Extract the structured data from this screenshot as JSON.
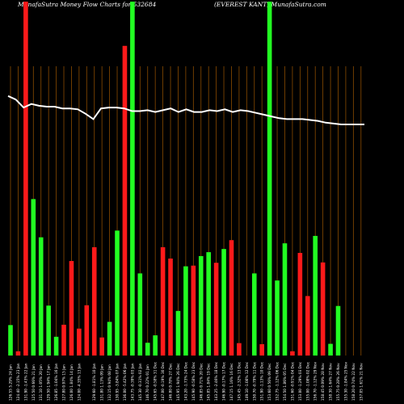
{
  "chart_data": {
    "type": "bar",
    "title_left": "MunafaSutra  Money Flow  Charts for 532684",
    "title_right": "(EVEREST KANT) MunafaSutra.com",
    "categories": [
      "Fri 24 Jan 2025",
      "Thu 23 Jan 2025",
      "Wed 22 Jan 2025",
      "Tue 21 Jan 2025",
      "Mon 20 Jan 2025",
      "Fri 17 Jan 2025",
      "Thu 16 Jan 2025",
      "Wed 15 Jan 2025",
      "Tue 14 Jan 2025",
      "Mon 13 Jan 2025",
      "Fri 10 Jan 2025",
      "Thu 09 Jan 2025",
      "Wed 08 Jan 2025",
      "Tue 07 Jan 2025",
      "Mon 06 Jan 2025",
      "Fri 03 Jan 2025",
      "Thu 02 Jan 2025",
      "Wed 01 Jan 2025",
      "Tue 31 Dec 2024",
      "Mon 30 Dec 2024",
      "Fri 27 Dec 2024",
      "Thu 26 Dec 2024",
      "Tue 24 Dec 2024",
      "Mon 23 Dec 2024",
      "Fri 20 Dec 2024",
      "Thu 19 Dec 2024",
      "Wed 18 Dec 2024",
      "Tue 17 Dec 2024",
      "Mon 16 Dec 2024",
      "Fri 13 Dec 2024",
      "Thu 12 Dec 2024",
      "Wed 11 Dec 2024",
      "Tue 10 Dec 2024",
      "Mon 09 Dec 2024",
      "Fri 06 Dec 2024",
      "Thu 05 Dec 2024",
      "Wed 04 Dec 2024",
      "Tue 03 Dec 2024",
      "Mon 02 Dec 2024",
      "Fri 29 Nov 2024",
      "Thu 28 Nov 2024",
      "Wed 27 Nov 2024",
      "Tue 26 Nov 2024",
      "Mon 25 Nov 2024",
      "Fri 22 Nov 2024",
      "Thu 21 Nov 2024",
      "Wed 20 Nov 2024"
    ],
    "tick_labels": [
      "126.55 5.29% 24 Jan",
      "124.40 -2.15% 23 Jan",
      "131.90 -1.43% 22 Jan",
      "125.50 0.66% 21 Jan",
      "131.10 1.05% 20 Jan",
      "129.50 1.94% 17 Jan",
      "126.85 -1.04% 16 Jan",
      "127.80 0.97% 15 Jan",
      "126.00 1.84% 14 Jan",
      "124.00 -4.35% 13 Jan",
      "",
      "129.60 -1.81% 10 Jan",
      "131.80 1.13% 09 Jan",
      "132.15 0.94% 08 Jan",
      "130.95 -3.84% 07 Jan",
      "136.00 -5.42% 06 Jan",
      "143.75 -0.39% 03 Jan",
      "145.30 -0.31% 02 Jan",
      "146.70 0.22% 01 Jan",
      "145.65 -0.58% 31 Dec",
      "147.00 -0.19% 30 Dec",
      "146.80 0.78% 27 Dec",
      "145.95 1.94% 26 Dec",
      "143.20 -1.73% 24 Dec",
      "145.90 -0.58% 23 Dec",
      "146.85 0.71% 20 Dec",
      "145.85 1.84% 19 Dec",
      "143.25 -2.46% 18 Dec",
      "146.90 -0.17% 17 Dec",
      "147.15 1.16% 16 Dec",
      "145.45 -2.32% 13 Dec",
      "149.10 -1.08% 12 Dec",
      "150.70 -0.79% 11 Dec",
      "151.90 -1.13% 10 Dec",
      "153.60 0.56% 09 Dec",
      "152.75 -1.12% 06 Dec",
      "154.50 1.86% 05 Dec",
      "151.60 -0.91% 04 Dec",
      "153.00 -1.29% 03 Dec",
      "155.00 -1.08% 02 Dec",
      "156.70 -1.12% 29 Nov",
      "158.45 0.09% 28 Nov",
      "158.30 1.64% 27 Nov",
      "155.75 0.28% 26 Nov",
      "155.30 -1.84% 25 Nov",
      "158.20 0.74% 22 Nov",
      "157.05 1.61% 21 Nov"
    ],
    "values": [
      8.6,
      1.2,
      100,
      44.2,
      33.4,
      14.1,
      5.3,
      8.7,
      26.7,
      7.6,
      14.2,
      30.6,
      5.1,
      9.5,
      35.3,
      87.5,
      100,
      23.2,
      3.6,
      5.7,
      30.6,
      27.4,
      12.6,
      25.2,
      25.4,
      28.1,
      29.2,
      26.2,
      30.1,
      32.6,
      3.5,
      0,
      23.2,
      3.2,
      100,
      21.2,
      31.7,
      1.2,
      29.0,
      16.8,
      33.8,
      26.3,
      3.3,
      14.0,
      0,
      0,
      0
    ],
    "colors": [
      "green",
      "red",
      "red",
      "green",
      "green",
      "green",
      "green",
      "red",
      "red",
      "red",
      "red",
      "red",
      "red",
      "green",
      "green",
      "red",
      "green",
      "green",
      "green",
      "green",
      "red",
      "red",
      "green",
      "green",
      "red",
      "green",
      "green",
      "red",
      "green",
      "red",
      "red",
      "red",
      "green",
      "red",
      "green",
      "green",
      "green",
      "red",
      "red",
      "red",
      "green",
      "red",
      "green",
      "green",
      "green",
      "green",
      "green"
    ],
    "line_series": [
      92,
      88,
      79,
      83,
      81,
      80,
      80,
      78,
      78,
      77,
      72,
      66,
      78,
      79,
      79,
      78,
      75,
      75,
      76,
      74,
      76,
      78,
      74,
      77,
      74,
      74,
      76,
      75,
      77,
      74,
      76,
      75,
      73,
      71,
      69,
      67,
      66,
      66,
      66,
      65,
      64,
      62,
      61,
      60,
      60,
      60,
      60
    ],
    "ylim": [
      0,
      100
    ],
    "color_scheme": {
      "green": "#22ff22",
      "red": "#ff1a1a",
      "grid": "#8a4b00",
      "line": "#ffffff"
    }
  }
}
